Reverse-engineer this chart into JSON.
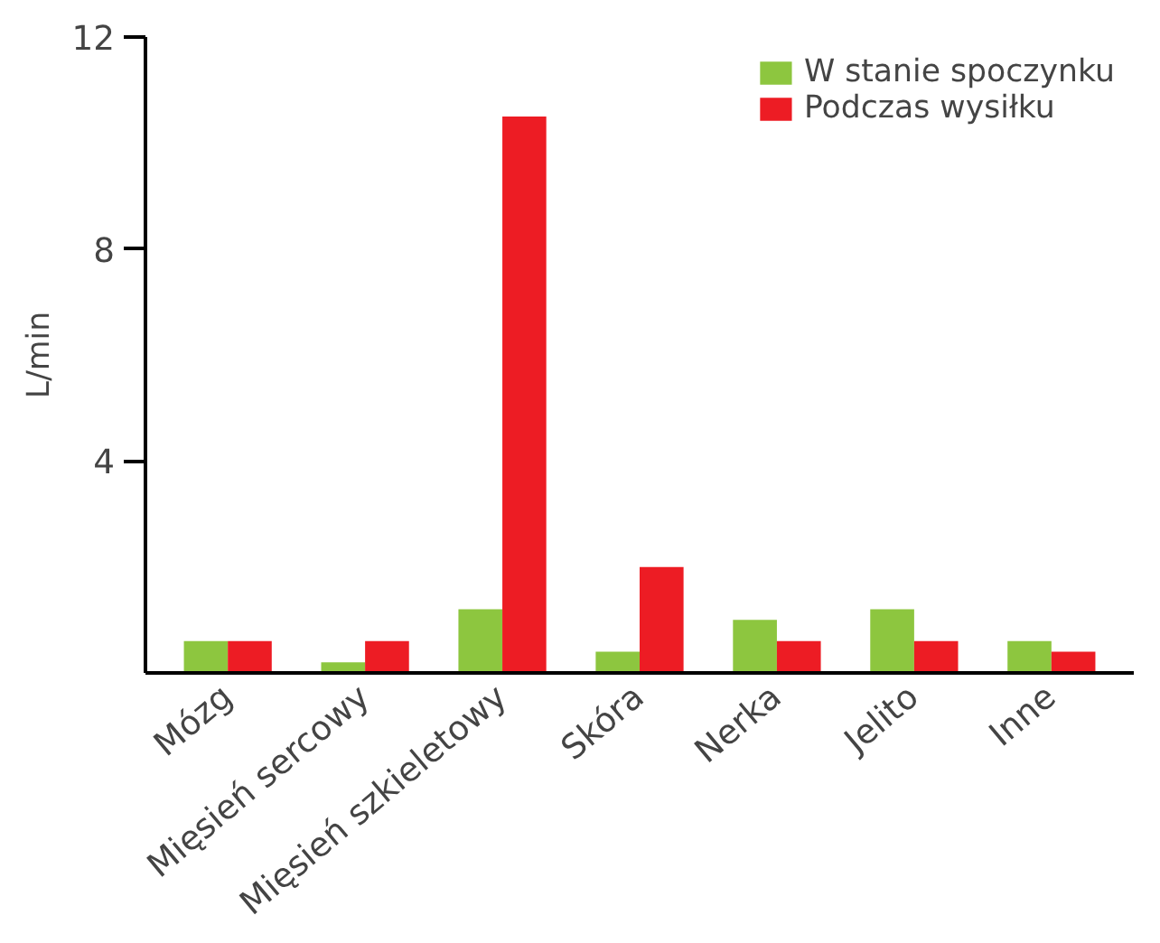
{
  "chart_data": {
    "type": "bar",
    "ylabel": "L/min",
    "categories": [
      "Mózg",
      "Mięsień sercowy",
      "Mięsień szkieletowy",
      "Skóra",
      "Nerka",
      "Jelito",
      "Inne"
    ],
    "series": [
      {
        "name": "W stanie spoczynku",
        "color": "#8dc63f",
        "values": [
          0.6,
          0.2,
          1.2,
          0.4,
          1.0,
          1.2,
          0.6
        ]
      },
      {
        "name": "Podczas wysiłku",
        "color": "#ed1c24",
        "values": [
          0.6,
          0.6,
          10.5,
          2.0,
          0.6,
          0.6,
          0.4
        ]
      }
    ],
    "ylim": [
      0,
      12
    ],
    "yticks": [
      4,
      8,
      12
    ],
    "grid": false,
    "legend": "top right"
  }
}
